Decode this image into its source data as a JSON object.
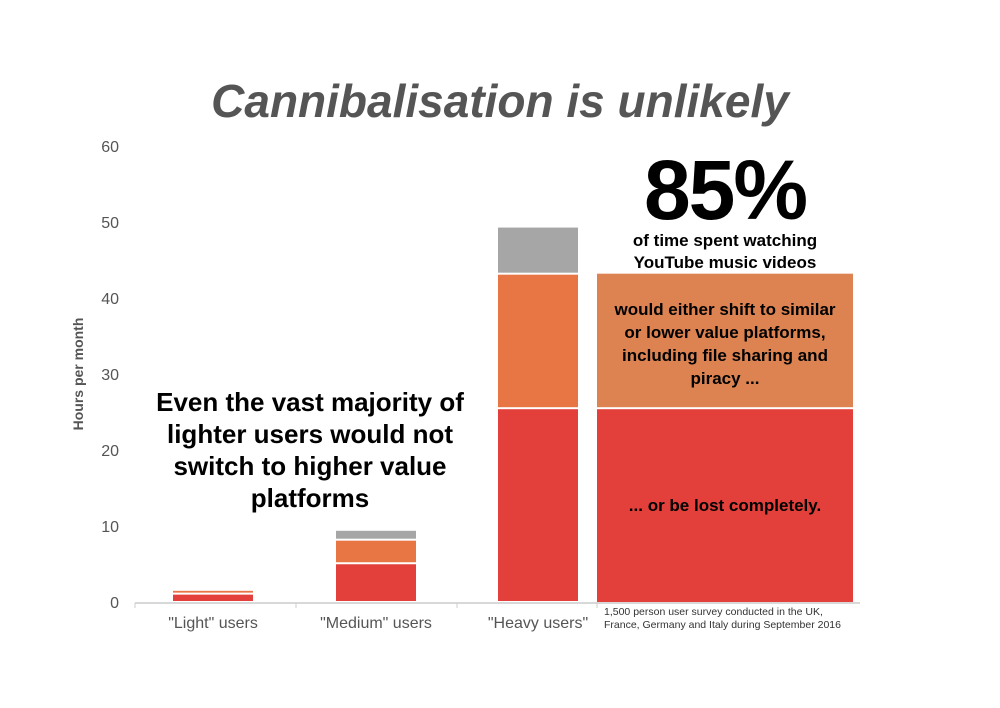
{
  "chart_data": {
    "type": "bar",
    "stacked": true,
    "title": "Cannibalisation is unlikely",
    "ylabel": "Hours per month",
    "xlabel": "",
    "ylim": [
      0,
      60
    ],
    "yticks": [
      0,
      10,
      20,
      30,
      40,
      50,
      60
    ],
    "grid": false,
    "categories": [
      "\"Light\" users",
      "\"Medium\" users",
      "\"Heavy users\""
    ],
    "series": [
      {
        "values": [
          1.1,
          5.1,
          25.5
        ],
        "color": "#e3403b"
      },
      {
        "values": [
          0.5,
          3.1,
          17.7
        ],
        "color": "#e87544"
      },
      {
        "values": [
          0,
          1.3,
          6.2
        ],
        "color": "#a6a6a6"
      }
    ],
    "breakdown_panel": {
      "headline": "85%",
      "subheadline": "of time spent watching YouTube music videos",
      "upper_text": "would either shift to similar or lower value platforms, including file sharing and piracy ...",
      "upper_color": "#dd8352",
      "lower_text": "... or be lost completely.",
      "lower_color": "#e3403b"
    },
    "annotation": "Even the vast majority of lighter users would not switch to higher value platforms",
    "footnote_lines": [
      "1,500 person user survey conducted in the UK,",
      "France, Germany and Italy during September 2016"
    ]
  }
}
